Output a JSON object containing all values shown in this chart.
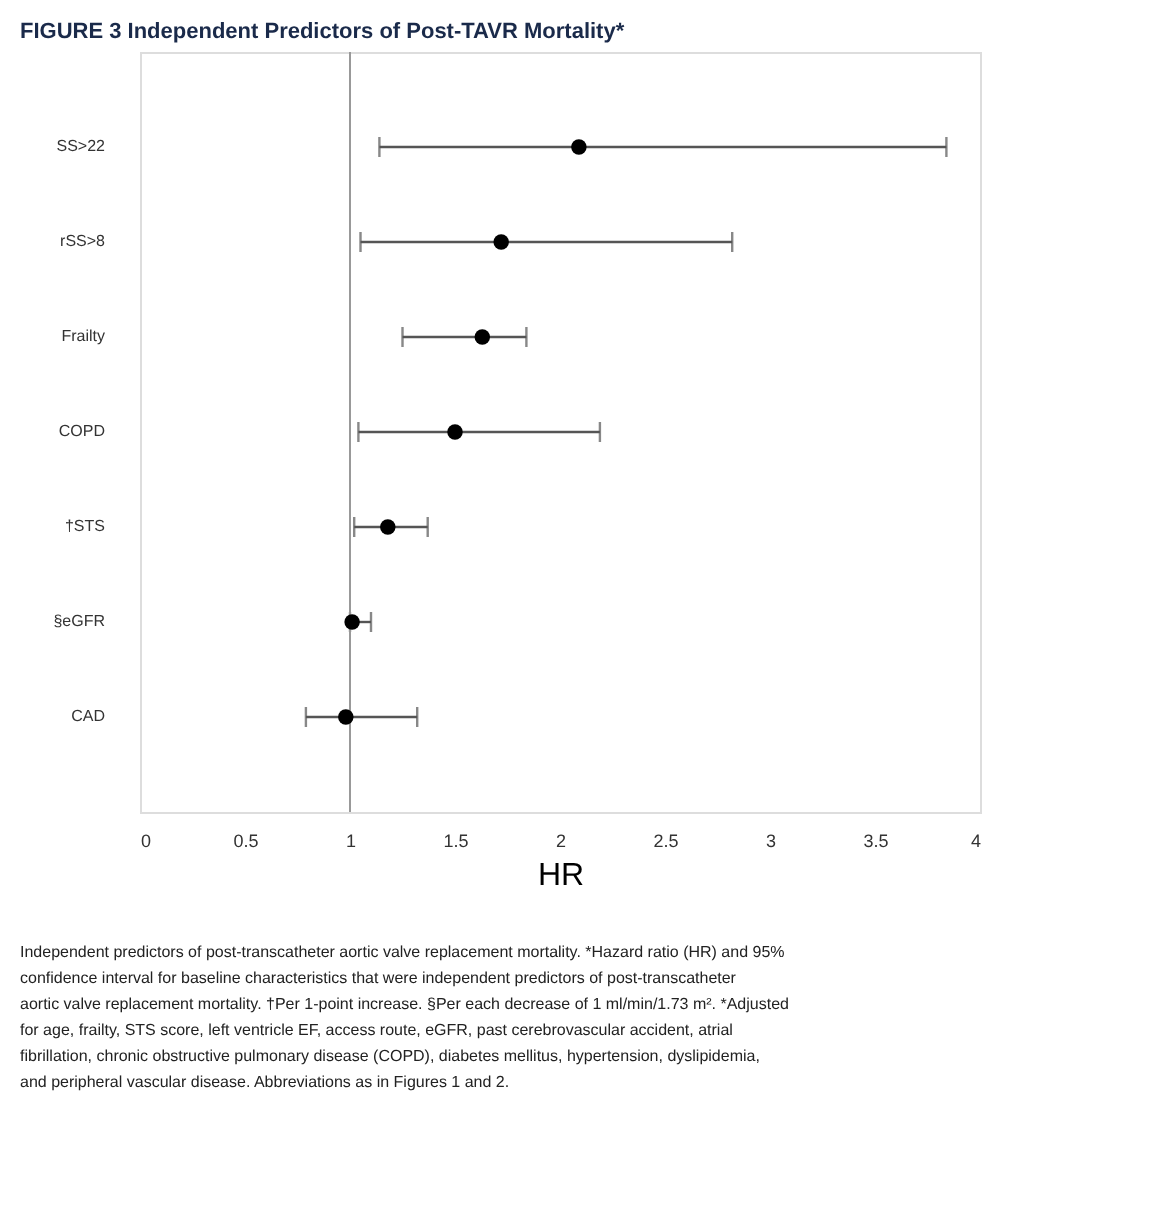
{
  "chart_data": {
    "type": "scatter",
    "title": "FIGURE 3 Independent Predictors of Post-TAVR Mortality*",
    "xlabel": "HR",
    "orientation": "horizontal",
    "categories": [
      "SS>22",
      "rSS>8",
      "Frailty",
      "COPD",
      "†STS",
      "§eGFR",
      "CAD"
    ],
    "series": [
      {
        "color": "#000000",
        "values": [
          2.09,
          1.72,
          1.63,
          1.5,
          1.18,
          1.01,
          0.98
        ],
        "errors": [
          [
            1.14,
            3.84
          ],
          [
            1.05,
            2.82
          ],
          [
            1.25,
            1.84
          ],
          [
            1.04,
            2.19
          ],
          [
            1.02,
            1.37
          ],
          [
            1.0,
            1.1
          ],
          [
            0.79,
            1.32
          ]
        ]
      }
    ],
    "xlim": [
      0,
      4
    ],
    "xticks": [
      0,
      0.5,
      1,
      1.5,
      2,
      2.5,
      3,
      3.5,
      4
    ],
    "ref_lines": [
      {
        "axis": "x",
        "value": 1,
        "color": "#999999"
      }
    ],
    "grid": false,
    "marker": "circle",
    "annotations": [
      "Independent predictors of post-transcatheter aortic valve replacement mortality. *Hazard ratio (HR) and 95% confidence interval for baseline characteristics that were independent predictors of post-transcatheter aortic valve replacement mortality. †Per 1-point increase. §Per each decrease of 1 ml/min/1.73 m². *Adjusted for age, frailty, STS score, left ventricle EF, access route, eGFR, past cerebrovascular accident, atrial fibrillation, chronic obstructive pulmonary disease (COPD), diabetes mellitus, hypertension, dyslipidemia, and peripheral vascular disease. Abbreviations as in Figures 1 and 2."
    ]
  }
}
